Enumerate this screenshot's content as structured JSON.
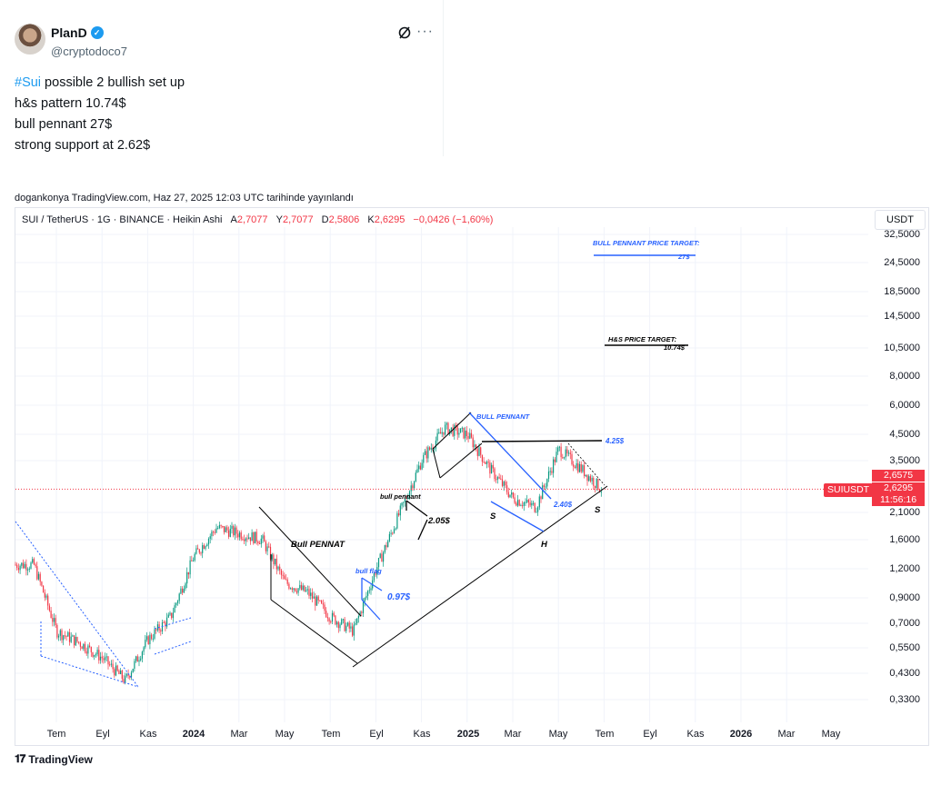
{
  "tweet": {
    "author_name": "PlanD",
    "handle": "@cryptodoco7",
    "lines": [
      {
        "hashtag": "#Sui",
        "text": " possible 2 bullish set up"
      },
      {
        "hashtag": "",
        "text": "h&s pattern 10.74$"
      },
      {
        "hashtag": "",
        "text": "bull pennant 27$"
      },
      {
        "hashtag": "",
        "text": "strong support at 2.62$"
      }
    ],
    "icons": {
      "verified": "verified-badge-icon",
      "grok": "grok-icon",
      "more": "more-icon"
    }
  },
  "tradingview": {
    "publish_line": "dogankonya TradingView.com, Haz 27, 2025 12:03 UTC tarihinde yayınlandı",
    "legend": {
      "symbol": "SUI / TetherUS · 1G · BINANCE · Heikin Ashi",
      "a_label": "A",
      "a_value": "2,7077",
      "y_label": "Y",
      "y_value": "2,7077",
      "d_label": "D",
      "d_value": "2,5806",
      "k_label": "K",
      "k_value": "2,6295",
      "change": "−0,0426 (−1,60%)"
    },
    "currency_button": "USDT",
    "symbol_tag": "SUIUSDT",
    "price_boxes": [
      "2,6575",
      "2,6295",
      "11:56:16"
    ],
    "logo_text": "TradingView",
    "colors": {
      "down": "#f23645",
      "up": "#089981",
      "annotation_blue": "#2962ff"
    }
  },
  "chart_data": {
    "type": "candlestick",
    "scale": "log",
    "price_axis": [
      "32,5000",
      "24,5000",
      "18,5000",
      "14,5000",
      "10,5000",
      "8,0000",
      "6,0000",
      "4,5000",
      "3,5000",
      "2,1000",
      "1,6000",
      "1,2000",
      "0,9000",
      "0,7000",
      "0,5500",
      "0,4300",
      "0,3300"
    ],
    "time_axis": [
      {
        "label": "Tem",
        "bold": false
      },
      {
        "label": "Eyl",
        "bold": false
      },
      {
        "label": "Kas",
        "bold": false
      },
      {
        "label": "2024",
        "bold": true
      },
      {
        "label": "Mar",
        "bold": false
      },
      {
        "label": "May",
        "bold": false
      },
      {
        "label": "Tem",
        "bold": false
      },
      {
        "label": "Eyl",
        "bold": false
      },
      {
        "label": "Kas",
        "bold": false
      },
      {
        "label": "2025",
        "bold": true
      },
      {
        "label": "Mar",
        "bold": false
      },
      {
        "label": "May",
        "bold": false
      },
      {
        "label": "Tem",
        "bold": false
      },
      {
        "label": "Eyl",
        "bold": false
      },
      {
        "label": "Kas",
        "bold": false
      },
      {
        "label": "2026",
        "bold": true
      },
      {
        "label": "Mar",
        "bold": false
      },
      {
        "label": "May",
        "bold": false
      }
    ],
    "price_path_anchors": [
      {
        "t": "2023-06",
        "p": 1.25
      },
      {
        "t": "2023-07",
        "p": 0.65
      },
      {
        "t": "2023-08",
        "p": 0.58
      },
      {
        "t": "2023-09",
        "p": 0.5
      },
      {
        "t": "2023-10",
        "p": 0.4
      },
      {
        "t": "2023-11",
        "p": 0.6
      },
      {
        "t": "2023-12",
        "p": 0.75
      },
      {
        "t": "2024-01",
        "p": 1.35
      },
      {
        "t": "2024-02",
        "p": 1.8
      },
      {
        "t": "2024-03",
        "p": 1.7
      },
      {
        "t": "2024-04",
        "p": 1.6
      },
      {
        "t": "2024-05",
        "p": 1.05
      },
      {
        "t": "2024-06",
        "p": 0.95
      },
      {
        "t": "2024-07",
        "p": 0.75
      },
      {
        "t": "2024-08",
        "p": 0.65
      },
      {
        "t": "2024-09",
        "p": 1.2
      },
      {
        "t": "2024-10",
        "p": 2.05
      },
      {
        "t": "2024-11",
        "p": 3.5
      },
      {
        "t": "2024-12",
        "p": 4.8
      },
      {
        "t": "2025-01",
        "p": 4.5
      },
      {
        "t": "2025-02",
        "p": 3.2
      },
      {
        "t": "2025-03",
        "p": 2.4
      },
      {
        "t": "2025-04",
        "p": 2.2
      },
      {
        "t": "2025-05",
        "p": 3.9
      },
      {
        "t": "2025-06",
        "p": 3.2
      },
      {
        "t": "2025-06-27",
        "p": 2.63
      }
    ],
    "levels": {
      "hs_neckline": 4.25,
      "support": 2.4,
      "last": 2.6295
    },
    "annotations": {
      "bull_pennant_target_label": "BULL PENNANT PRICE TARGET:",
      "bull_pennant_target_value": "27$",
      "hs_target_label": "H&S PRICE TARGET:",
      "hs_target_value": "10.74$",
      "bull_pennant_label": "BULL PENNANT",
      "bull_pennat_label": "Bull PENNAT",
      "bull_pennant_small_label": "bull pennant",
      "bull_flag_label": "bull flag",
      "value_097": "0.97$",
      "value_205": "2.05$",
      "value_425": "4.25$",
      "value_240": "2.40$",
      "s_left": "S",
      "h": "H",
      "s_right": "S"
    }
  }
}
